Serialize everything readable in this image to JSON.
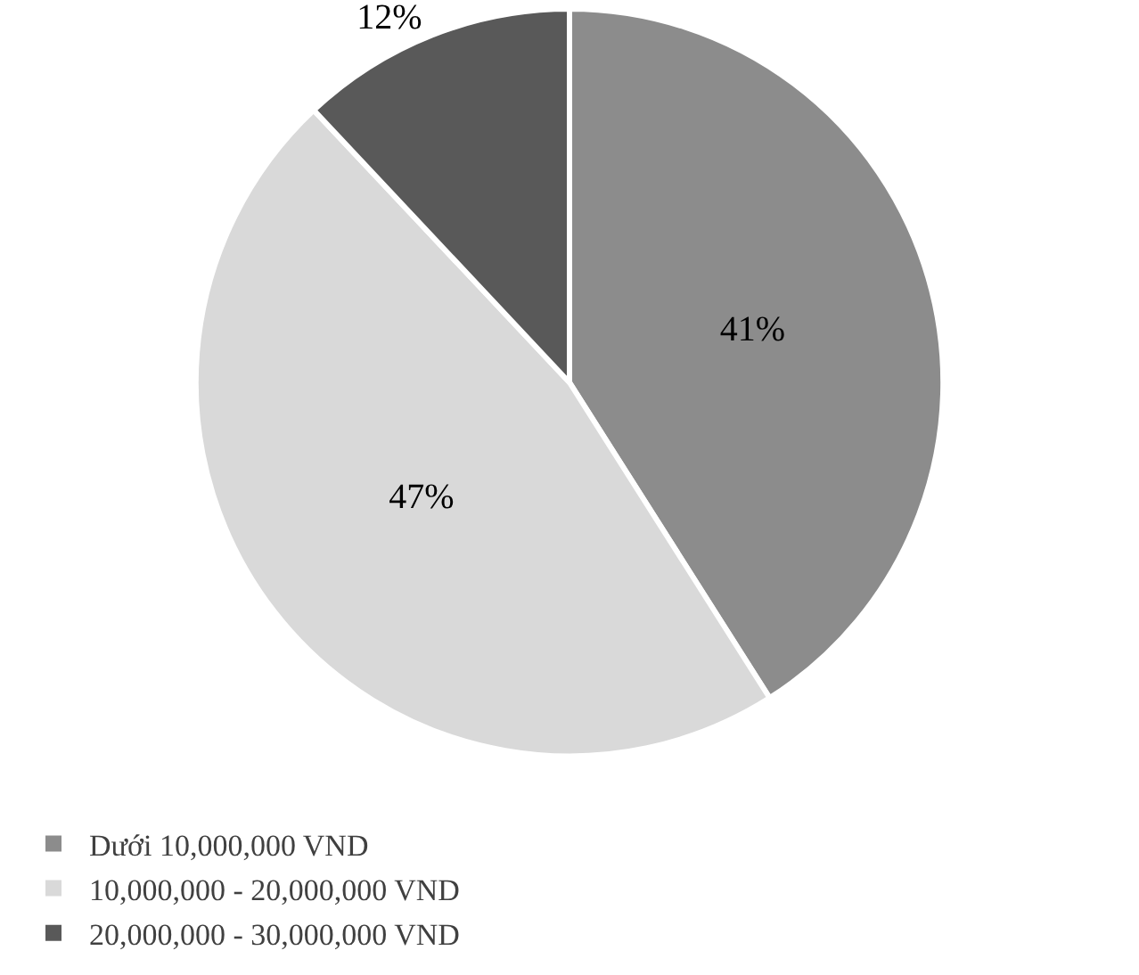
{
  "chart_data": {
    "type": "pie",
    "categories": [
      "Dưới 10,000,000 VND",
      "10,000,000 - 20,000,000 VND",
      "20,000,000 - 30,000,000 VND"
    ],
    "values": [
      41,
      47,
      12
    ],
    "value_labels": [
      "41%",
      "47%",
      "12%"
    ],
    "colors": [
      "#8c8c8c",
      "#d9d9d9",
      "#595959"
    ],
    "legend": "bottom"
  }
}
